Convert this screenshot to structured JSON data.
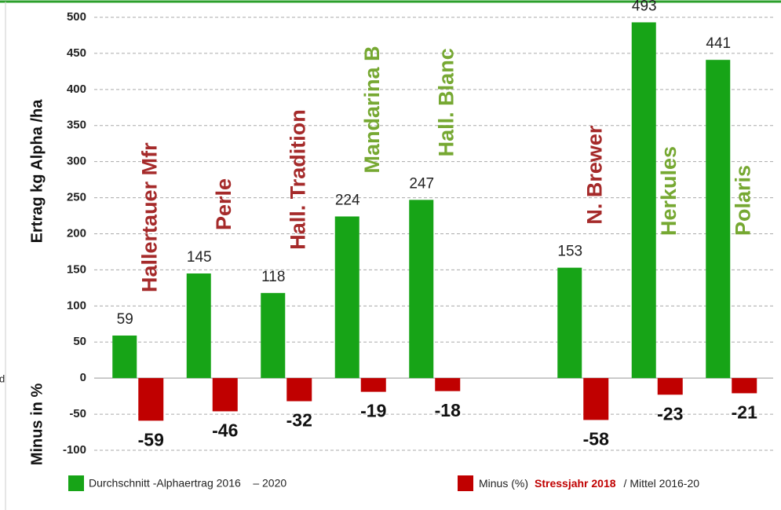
{
  "chart_data": {
    "type": "bar",
    "y_label_top": "Ertrag kg Alpha /ha",
    "y_label_bottom": "Minus in %",
    "edge_text": "d",
    "categories": [
      "Hallertauer Mfr",
      "Perle",
      "Hall. Tradition",
      "Mandarina B",
      "Hall. Blanc",
      null,
      "N. Brewer",
      "Herkules",
      "Polaris"
    ],
    "category_colors": [
      "#a52a2a",
      "#a52a2a",
      "#a52a2a",
      "#76a832",
      "#76a832",
      null,
      "#a52a2a",
      "#76a832",
      "#76a832"
    ],
    "series": [
      {
        "name": "Durchschnitt -Alphaertrag 2016    – 2020",
        "color": "#17a417",
        "values": [
          59,
          145,
          118,
          224,
          247,
          null,
          153,
          493,
          441
        ]
      },
      {
        "name": "Minus (%)",
        "legend_highlight": "Stressjahr 2018",
        "legend_suffix": "/ Mittel 2016-20",
        "color": "#c00000",
        "values": [
          -59,
          -46,
          -32,
          -19,
          -18,
          null,
          -58,
          -23,
          -21
        ]
      }
    ],
    "ylim": [
      -100,
      500
    ],
    "yticks": [
      -100,
      -50,
      0,
      50,
      100,
      150,
      200,
      250,
      300,
      350,
      400,
      450,
      500
    ],
    "grid": true
  }
}
